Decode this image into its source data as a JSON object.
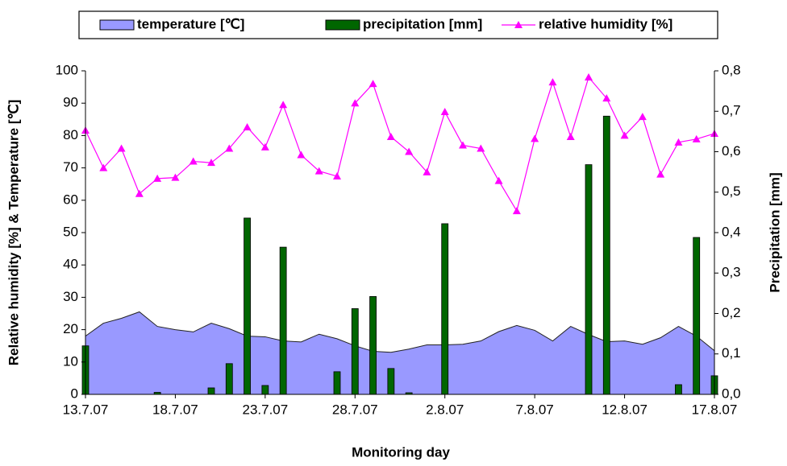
{
  "chart_data": {
    "type": "combo",
    "x_label": "Monitoring day",
    "y_label": "Relative humidity [%] & Temperature [℃]",
    "y2_label": "Precipitation [mm]",
    "categories": [
      "13.7.07",
      null,
      null,
      null,
      null,
      "18.7.07",
      null,
      null,
      null,
      null,
      "23.7.07",
      null,
      null,
      null,
      null,
      "28.7.07",
      null,
      null,
      null,
      null,
      "2.8.07",
      null,
      null,
      null,
      null,
      "7.8.07",
      null,
      null,
      null,
      null,
      "12.8.07",
      null,
      null,
      null,
      null,
      "17.8.07"
    ],
    "ylim": [
      0,
      100
    ],
    "yticks": [
      0,
      10,
      20,
      30,
      40,
      50,
      60,
      70,
      80,
      90,
      100
    ],
    "y2lim": [
      0,
      0.8
    ],
    "y2ticks": [
      {
        "value": 0,
        "label": "0,0"
      },
      {
        "value": 0.1,
        "label": "0,1"
      },
      {
        "value": 0.2,
        "label": "0,2"
      },
      {
        "value": 0.3,
        "label": "0,3"
      },
      {
        "value": 0.4,
        "label": "0,4"
      },
      {
        "value": 0.5,
        "label": "0,5"
      },
      {
        "value": 0.6,
        "label": "0,6"
      },
      {
        "value": 0.7,
        "label": "0,7"
      },
      {
        "value": 0.8,
        "label": "0,8"
      }
    ],
    "grid": false,
    "legend": "top",
    "series": [
      {
        "name": "temperature [℃]",
        "kind": "area",
        "color": "#9999ff",
        "values": [
          18,
          22,
          23.5,
          25.5,
          21,
          20,
          19.3,
          22,
          20.3,
          18,
          17.8,
          16.5,
          16.2,
          18.6,
          17.2,
          15,
          13.3,
          13,
          14,
          15.3,
          15.3,
          15.5,
          16.5,
          19.4,
          21.3,
          19.8,
          16.5,
          21,
          18.5,
          16.3,
          16.5,
          15.5,
          17.5,
          21,
          18,
          13.5
        ]
      },
      {
        "name": "precipitation [mm]",
        "kind": "bar",
        "axis": "y2",
        "color": "#006600",
        "values": [
          0.12,
          0,
          0,
          0,
          0.005,
          0,
          0,
          0.016,
          0.076,
          0.436,
          0.022,
          0.364,
          0,
          0,
          0.056,
          0.212,
          0.242,
          0.064,
          0.004,
          0,
          0.422,
          0,
          0,
          0,
          0,
          0,
          0,
          0,
          0.568,
          0.688,
          0,
          0,
          0,
          0.024,
          0.388,
          0.046
        ]
      },
      {
        "name": "relative humidity [%]",
        "kind": "line",
        "color": "#ff00ff",
        "values": [
          81.6,
          70,
          76,
          62,
          66.7,
          67,
          72,
          71.6,
          76,
          82.6,
          76.4,
          89.5,
          74,
          69,
          67.4,
          90,
          96,
          79.6,
          75,
          68.7,
          87.3,
          77,
          76,
          66,
          56.7,
          79,
          96.5,
          79.6,
          98,
          91.5,
          80,
          85.8,
          68,
          77.9,
          78.9,
          80.6
        ]
      }
    ]
  }
}
